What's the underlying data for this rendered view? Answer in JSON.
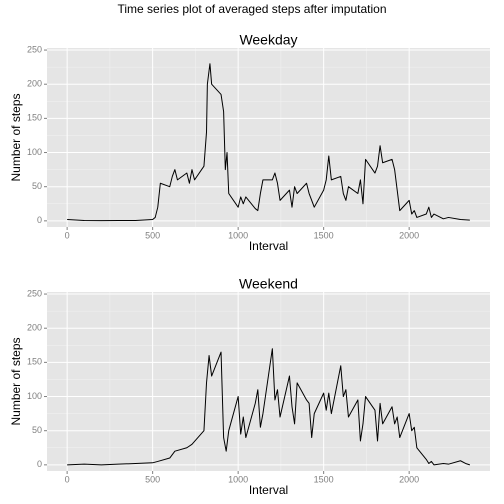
{
  "title": "Time series plot of averaged steps after imputation",
  "chart_data": [
    {
      "type": "line",
      "title": "Weekday",
      "xlabel": "Interval",
      "ylabel": "Number of steps",
      "color": "#000000",
      "grid": true,
      "xlim": [
        -117.75,
        2472.75
      ],
      "xticks": [
        0,
        500,
        1000,
        1500,
        2000
      ],
      "ylim": [
        -9,
        253
      ],
      "yticks": [
        0,
        50,
        100,
        150,
        200,
        250
      ],
      "x": [
        0,
        100,
        200,
        300,
        400,
        500,
        515,
        530,
        545,
        600,
        615,
        630,
        645,
        700,
        715,
        730,
        745,
        800,
        815,
        820,
        835,
        845,
        900,
        915,
        925,
        935,
        945,
        1000,
        1015,
        1030,
        1045,
        1100,
        1115,
        1130,
        1145,
        1200,
        1215,
        1230,
        1245,
        1300,
        1315,
        1330,
        1345,
        1400,
        1415,
        1430,
        1445,
        1500,
        1515,
        1530,
        1545,
        1600,
        1615,
        1630,
        1645,
        1700,
        1715,
        1730,
        1745,
        1800,
        1815,
        1830,
        1845,
        1900,
        1915,
        1930,
        1945,
        2000,
        2015,
        2030,
        2045,
        2100,
        2115,
        2130,
        2145,
        2200,
        2230,
        2300,
        2355
      ],
      "values": [
        2,
        0.5,
        0.3,
        0.5,
        0.5,
        2,
        5,
        20,
        55,
        50,
        65,
        75,
        60,
        70,
        55,
        75,
        60,
        80,
        130,
        200,
        230,
        200,
        185,
        160,
        75,
        100,
        40,
        20,
        35,
        25,
        35,
        18,
        15,
        40,
        60,
        60,
        70,
        55,
        30,
        45,
        20,
        50,
        40,
        55,
        40,
        30,
        20,
        45,
        60,
        95,
        60,
        65,
        40,
        30,
        50,
        40,
        60,
        25,
        90,
        70,
        80,
        110,
        85,
        90,
        75,
        45,
        15,
        30,
        10,
        15,
        5,
        10,
        20,
        5,
        10,
        3,
        5,
        2,
        1
      ]
    },
    {
      "type": "line",
      "title": "Weekend",
      "xlabel": "Interval",
      "ylabel": "Number of steps",
      "color": "#000000",
      "grid": true,
      "xlim": [
        -117.75,
        2472.75
      ],
      "xticks": [
        0,
        500,
        1000,
        1500,
        2000
      ],
      "ylim": [
        -9,
        253
      ],
      "yticks": [
        0,
        50,
        100,
        150,
        200,
        250
      ],
      "x": [
        0,
        100,
        200,
        300,
        400,
        500,
        530,
        600,
        630,
        700,
        730,
        800,
        815,
        830,
        845,
        900,
        915,
        930,
        945,
        1000,
        1015,
        1030,
        1045,
        1100,
        1115,
        1130,
        1145,
        1200,
        1215,
        1230,
        1245,
        1300,
        1315,
        1330,
        1345,
        1400,
        1415,
        1430,
        1445,
        1500,
        1515,
        1530,
        1545,
        1600,
        1615,
        1630,
        1645,
        1700,
        1715,
        1730,
        1745,
        1800,
        1815,
        1830,
        1845,
        1900,
        1915,
        1930,
        1945,
        2000,
        2015,
        2030,
        2045,
        2100,
        2115,
        2130,
        2145,
        2200,
        2230,
        2300,
        2330,
        2355
      ],
      "values": [
        0,
        1,
        0,
        1,
        2,
        3,
        5,
        10,
        20,
        25,
        30,
        50,
        120,
        160,
        130,
        165,
        40,
        20,
        50,
        100,
        45,
        70,
        40,
        90,
        110,
        55,
        75,
        170,
        95,
        110,
        70,
        130,
        85,
        60,
        120,
        95,
        90,
        40,
        75,
        105,
        80,
        105,
        75,
        145,
        100,
        110,
        70,
        95,
        35,
        60,
        100,
        80,
        35,
        90,
        60,
        85,
        60,
        70,
        40,
        75,
        50,
        55,
        25,
        8,
        2,
        5,
        0,
        2,
        1,
        6,
        2,
        0
      ]
    }
  ]
}
